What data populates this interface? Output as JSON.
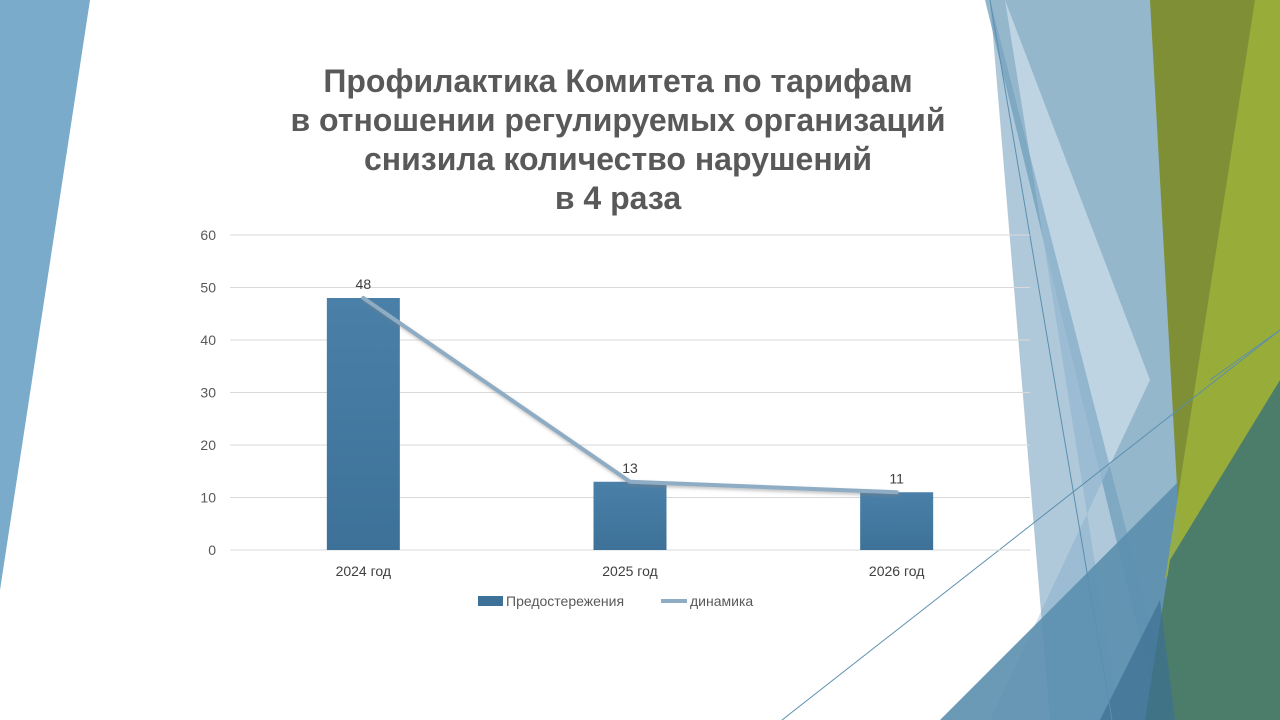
{
  "slide": {
    "title_lines": [
      "Профилактика Комитета по тарифам",
      "в отношении регулируемых организаций",
      "снизила количество нарушений",
      "в 4 раза"
    ]
  },
  "chart_data": {
    "type": "bar",
    "title": "Профилактика Комитета по тарифам в отношении регулируемых организаций снизила количество нарушений в 4 раза",
    "categories": [
      "2024 год",
      "2025 год",
      "2026 год"
    ],
    "series": [
      {
        "name": "Предостережения",
        "kind": "bar",
        "values": [
          48,
          13,
          11
        ],
        "color": "#3d7198"
      },
      {
        "name": "динамика",
        "kind": "line",
        "values": [
          48,
          13,
          11
        ],
        "color": "#8eacc4"
      }
    ],
    "data_labels": [
      "48",
      "13",
      "11"
    ],
    "yticks": [
      0,
      10,
      20,
      30,
      40,
      50,
      60
    ],
    "ylim": [
      0,
      60
    ],
    "grid": true,
    "legend_position": "bottom",
    "xlabel": "",
    "ylabel": ""
  },
  "colors": {
    "bar": "#3d7198",
    "line": "#8eacc4",
    "grid": "#d9d9d9",
    "text": "#595959",
    "deco_blue_dark": "#5b8fae",
    "deco_blue_light": "#a9c6da",
    "deco_green": "#8a9a2c",
    "deco_teal": "#4c7d6b"
  }
}
